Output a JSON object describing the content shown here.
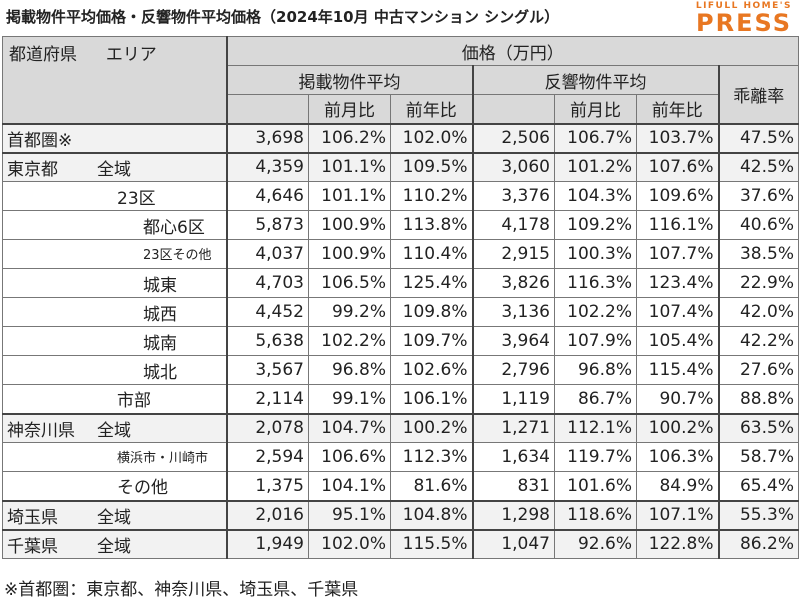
{
  "title": "掲載物件平均価格・反響物件平均価格（2024年10月 中古マンション シングル）",
  "logo": {
    "top": "LIFULL HOME'S",
    "bottom": "PRESS"
  },
  "headers": {
    "pref": "都道府県",
    "area": "エリア",
    "price": "価格（万円）",
    "listing": "掲載物件平均",
    "response": "反響物件平均",
    "gap": "乖離率",
    "mom": "前月比",
    "yoy": "前年比"
  },
  "rows": [
    {
      "pref": "首都圏※",
      "area": "",
      "lp": "3,698",
      "lm": "106.2%",
      "ly": "102.0%",
      "rp": "2,506",
      "rm": "106.7%",
      "ry": "103.7%",
      "gap": "47.5%"
    },
    {
      "pref": "東京都",
      "area": "全域",
      "lp": "4,359",
      "lm": "101.1%",
      "ly": "109.5%",
      "rp": "3,060",
      "rm": "101.2%",
      "ry": "107.6%",
      "gap": "42.5%"
    },
    {
      "pref": "",
      "area": "23区",
      "lp": "4,646",
      "lm": "101.1%",
      "ly": "110.2%",
      "rp": "3,376",
      "rm": "104.3%",
      "ry": "109.6%",
      "gap": "37.6%"
    },
    {
      "pref": "",
      "area": "都心6区",
      "lp": "5,873",
      "lm": "100.9%",
      "ly": "113.8%",
      "rp": "4,178",
      "rm": "109.2%",
      "ry": "116.1%",
      "gap": "40.6%"
    },
    {
      "pref": "",
      "area": "23区その他",
      "lp": "4,037",
      "lm": "100.9%",
      "ly": "110.4%",
      "rp": "2,915",
      "rm": "100.3%",
      "ry": "107.7%",
      "gap": "38.5%"
    },
    {
      "pref": "",
      "area": "城東",
      "lp": "4,703",
      "lm": "106.5%",
      "ly": "125.4%",
      "rp": "3,826",
      "rm": "116.3%",
      "ry": "123.4%",
      "gap": "22.9%"
    },
    {
      "pref": "",
      "area": "城西",
      "lp": "4,452",
      "lm": "99.2%",
      "ly": "109.8%",
      "rp": "3,136",
      "rm": "102.2%",
      "ry": "107.4%",
      "gap": "42.0%"
    },
    {
      "pref": "",
      "area": "城南",
      "lp": "5,638",
      "lm": "102.2%",
      "ly": "109.7%",
      "rp": "3,964",
      "rm": "107.9%",
      "ry": "105.4%",
      "gap": "42.2%"
    },
    {
      "pref": "",
      "area": "城北",
      "lp": "3,567",
      "lm": "96.8%",
      "ly": "102.6%",
      "rp": "2,796",
      "rm": "96.8%",
      "ry": "115.4%",
      "gap": "27.6%"
    },
    {
      "pref": "",
      "area": "市部",
      "lp": "2,114",
      "lm": "99.1%",
      "ly": "106.1%",
      "rp": "1,119",
      "rm": "86.7%",
      "ry": "90.7%",
      "gap": "88.8%"
    },
    {
      "pref": "神奈川県",
      "area": "全域",
      "lp": "2,078",
      "lm": "104.7%",
      "ly": "100.2%",
      "rp": "1,271",
      "rm": "112.1%",
      "ry": "100.2%",
      "gap": "63.5%"
    },
    {
      "pref": "",
      "area": "横浜市・川崎市",
      "lp": "2,594",
      "lm": "106.6%",
      "ly": "112.3%",
      "rp": "1,634",
      "rm": "119.7%",
      "ry": "106.3%",
      "gap": "58.7%"
    },
    {
      "pref": "",
      "area": "その他",
      "lp": "1,375",
      "lm": "104.1%",
      "ly": "81.6%",
      "rp": "831",
      "rm": "101.6%",
      "ry": "84.9%",
      "gap": "65.4%"
    },
    {
      "pref": "埼玉県",
      "area": "全域",
      "lp": "2,016",
      "lm": "95.1%",
      "ly": "104.8%",
      "rp": "1,298",
      "rm": "118.6%",
      "ry": "107.1%",
      "gap": "55.3%"
    },
    {
      "pref": "千葉県",
      "area": "全域",
      "lp": "1,949",
      "lm": "102.0%",
      "ly": "115.5%",
      "rp": "1,047",
      "rm": "92.6%",
      "ry": "122.8%",
      "gap": "86.2%"
    }
  ],
  "note": "※首都圏：東京都、神奈川県、埼玉県、千葉県"
}
